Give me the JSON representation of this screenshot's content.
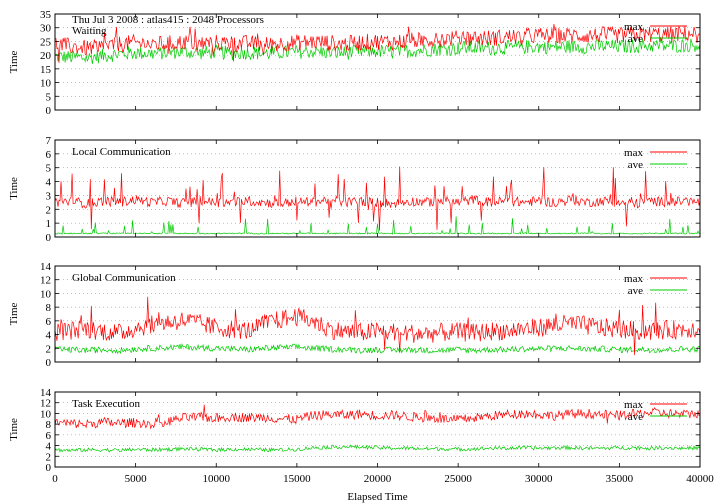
{
  "chart_data": {
    "type": "line",
    "header": "Thu Jul 3 2008 : atlas415 : 2048 Processors",
    "xlabel": "Elapsed Time",
    "x_ticks": [
      0,
      5000,
      10000,
      15000,
      20000,
      25000,
      30000,
      35000,
      40000
    ],
    "xlim": [
      0,
      40000
    ],
    "grid": "horizontal dotted",
    "legend_position": "top-right",
    "colors": {
      "max": "#ff0000",
      "ave": "#00cc00"
    },
    "panels": [
      {
        "title": "Waiting",
        "ylabel": "Time",
        "ylim": [
          0,
          35
        ],
        "y_ticks": [
          0,
          5,
          10,
          15,
          20,
          25,
          30,
          35
        ],
        "series": [
          {
            "name": "max",
            "values": [
              24.0,
              23.2,
              22.5,
              23.0,
              24.1,
              24.5,
              23.9,
              24.3,
              24.8,
              24.2,
              24.6,
              24.1,
              24.4,
              23.8,
              24.2,
              24.6,
              24.9,
              24.5,
              24.1,
              24.7,
              25.0,
              24.8,
              25.3,
              25.6,
              25.9,
              26.1,
              26.4,
              26.2,
              26.6,
              26.9,
              27.2,
              27.0,
              27.3,
              27.1,
              27.4,
              27.2,
              27.5,
              27.7,
              27.4,
              27.8,
              28.0
            ]
          },
          {
            "name": "ave",
            "values": [
              19.5,
              19.2,
              19.0,
              19.8,
              20.4,
              20.9,
              20.6,
              21.0,
              21.3,
              20.8,
              21.1,
              20.7,
              21.0,
              20.6,
              20.9,
              21.2,
              21.4,
              21.0,
              20.8,
              21.3,
              21.5,
              21.2,
              21.6,
              22.0,
              22.3,
              22.5,
              22.7,
              22.5,
              22.8,
              23.0,
              23.1,
              22.9,
              23.2,
              23.0,
              23.3,
              23.1,
              23.4,
              23.5,
              23.3,
              23.6,
              23.8
            ]
          }
        ]
      },
      {
        "title": "Local Communication",
        "ylabel": "Time",
        "ylim": [
          0,
          7
        ],
        "y_ticks": [
          0,
          1,
          2,
          3,
          4,
          5,
          6,
          7
        ],
        "series": [
          {
            "name": "max",
            "values": [
              2.5,
              2.6,
              2.4,
              2.6,
              2.5,
              2.7,
              2.5,
              2.6,
              2.4,
              2.6,
              2.5,
              2.5,
              2.6,
              2.5,
              2.4,
              2.6,
              2.5,
              2.7,
              2.5,
              2.6,
              2.5,
              2.4,
              2.6,
              2.5,
              2.6,
              2.5,
              2.7,
              2.5,
              2.6,
              2.5,
              2.6,
              2.5,
              2.7,
              2.5,
              2.6,
              2.5,
              2.4,
              2.6,
              2.5,
              2.6,
              2.5
            ]
          },
          {
            "name": "ave",
            "values": [
              0.25,
              0.26,
              0.25,
              0.27,
              0.25,
              0.26,
              0.25,
              0.27,
              0.25,
              0.26,
              0.25,
              0.26,
              0.27,
              0.25,
              0.26,
              0.25,
              0.27,
              0.26,
              0.25,
              0.26,
              0.27,
              0.25,
              0.26,
              0.25,
              0.27,
              0.26,
              0.25,
              0.26,
              0.25,
              0.27,
              0.26,
              0.25,
              0.26,
              0.27,
              0.25,
              0.26,
              0.25,
              0.27,
              0.26,
              0.25,
              0.26
            ]
          }
        ]
      },
      {
        "title": "Global Communication",
        "ylabel": "Time",
        "ylim": [
          0,
          14
        ],
        "y_ticks": [
          0,
          2,
          4,
          6,
          8,
          10,
          12,
          14
        ],
        "series": [
          {
            "name": "max",
            "values": [
              4.4,
              4.6,
              4.8,
              4.5,
              4.2,
              5.0,
              5.4,
              5.8,
              6.1,
              5.6,
              5.0,
              4.8,
              4.6,
              5.6,
              6.2,
              6.6,
              6.0,
              4.8,
              4.4,
              4.3,
              4.5,
              4.4,
              4.2,
              4.1,
              4.3,
              4.4,
              4.2,
              4.5,
              4.6,
              4.8,
              5.0,
              5.4,
              5.6,
              5.3,
              5.0,
              4.8,
              4.6,
              4.5,
              4.7,
              4.8,
              5.0
            ]
          },
          {
            "name": "ave",
            "values": [
              1.8,
              1.8,
              1.7,
              1.8,
              1.7,
              1.9,
              2.0,
              2.1,
              2.2,
              2.1,
              2.0,
              1.9,
              1.8,
              2.0,
              2.1,
              2.2,
              2.0,
              1.9,
              1.8,
              1.7,
              1.8,
              1.7,
              1.8,
              1.7,
              1.7,
              1.8,
              1.7,
              1.8,
              1.8,
              1.9,
              1.9,
              2.0,
              2.0,
              1.9,
              1.9,
              1.8,
              1.8,
              1.8,
              1.8,
              1.9,
              1.9
            ]
          }
        ]
      },
      {
        "title": "Task Execution",
        "ylabel": "Time",
        "ylim": [
          0,
          14
        ],
        "y_ticks": [
          0,
          2,
          4,
          6,
          8,
          10,
          12,
          14
        ],
        "series": [
          {
            "name": "max",
            "values": [
              8.3,
              8.1,
              8.0,
              8.4,
              8.2,
              8.3,
              8.2,
              8.5,
              9.2,
              9.3,
              9.1,
              9.4,
              9.2,
              9.3,
              9.0,
              8.9,
              9.6,
              9.8,
              9.7,
              9.9,
              9.6,
              9.7,
              9.4,
              9.2,
              9.0,
              8.8,
              9.2,
              9.5,
              9.8,
              10.0,
              9.8,
              9.6,
              9.9,
              10.0,
              9.8,
              9.6,
              9.9,
              10.2,
              10.0,
              9.8,
              10.1
            ]
          },
          {
            "name": "ave",
            "values": [
              3.2,
              3.1,
              3.2,
              3.2,
              3.1,
              3.3,
              3.2,
              3.3,
              3.4,
              3.3,
              3.2,
              3.3,
              3.3,
              3.2,
              3.2,
              3.3,
              3.6,
              3.7,
              3.8,
              3.7,
              3.6,
              3.5,
              3.5,
              3.4,
              3.4,
              3.3,
              3.4,
              3.5,
              3.5,
              3.6,
              3.5,
              3.6,
              3.6,
              3.5,
              3.5,
              3.6,
              3.6,
              3.5,
              3.6,
              3.5,
              3.6
            ]
          }
        ]
      }
    ]
  }
}
